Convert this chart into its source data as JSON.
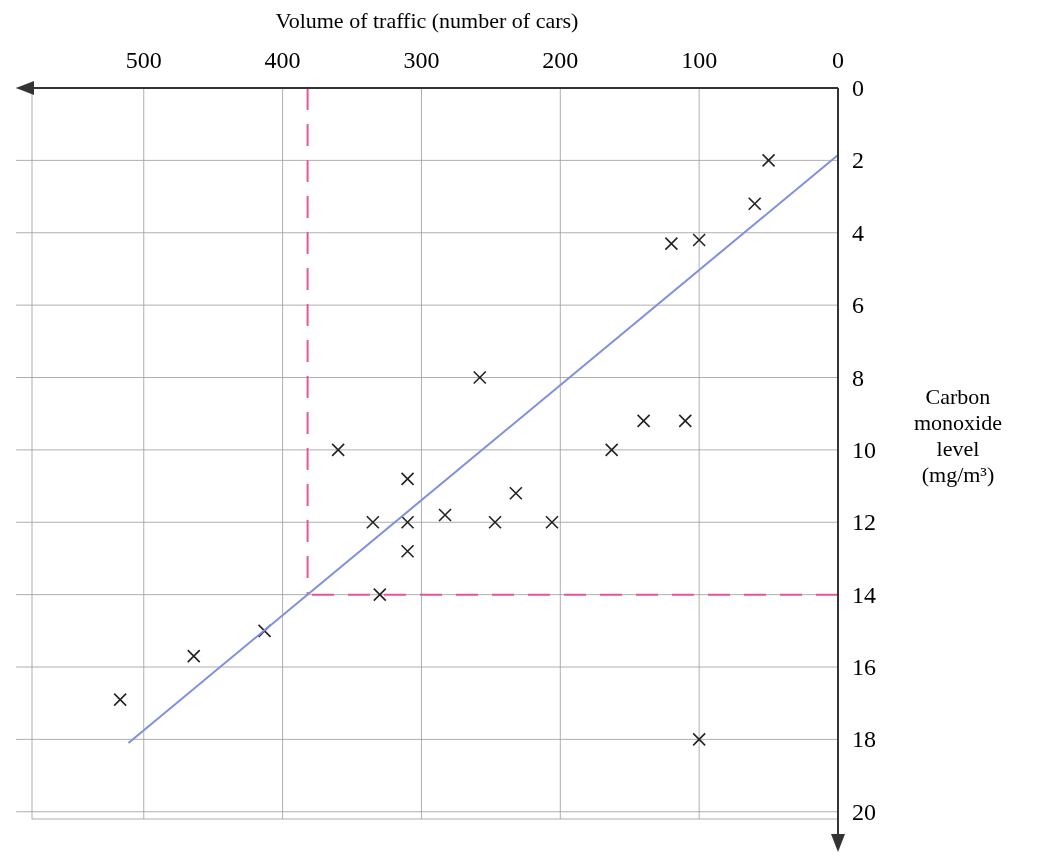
{
  "chart_data": {
    "type": "scatter",
    "xlabel": "Volume of traffic (number of cars)",
    "ylabel": "Carbon monoxide level (mg/m³)",
    "xlim": [
      592,
      0
    ],
    "ylim": [
      20.2,
      0
    ],
    "xticks": [
      0,
      100,
      200,
      300,
      400,
      500
    ],
    "yticks": [
      0,
      2,
      4,
      6,
      8,
      10,
      12,
      14,
      16,
      18,
      20
    ],
    "grid": true,
    "marker": "cross",
    "series": [
      {
        "color": "#222222",
        "x": [
          50,
          60,
          100,
          120,
          258,
          110,
          140,
          163,
          360,
          310,
          232,
          283,
          335,
          310,
          247,
          206,
          310,
          330,
          413,
          464,
          517,
          100
        ],
        "values": [
          2,
          3.2,
          4.2,
          4.3,
          8,
          9.2,
          9.2,
          10,
          10,
          10.8,
          11.2,
          11.8,
          12,
          12,
          12,
          12,
          12.8,
          14,
          15,
          15.7,
          16.9,
          18
        ]
      },
      {
        "type": "line",
        "marker": "none",
        "color": "#7f8fe0",
        "x": [
          0,
          511
        ],
        "values": [
          1.85,
          18.1
        ]
      }
    ],
    "ref_lines": [
      {
        "axis": "x",
        "value": 382,
        "color": "#e8559a",
        "line_style": "dashed"
      },
      {
        "axis": "y",
        "value": 14,
        "color": "#e8559a",
        "line_style": "dashed"
      }
    ]
  }
}
